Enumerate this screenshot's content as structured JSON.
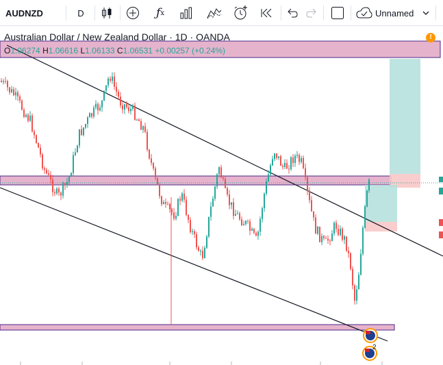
{
  "toolbar": {
    "symbol": "AUDNZD",
    "interval": "D",
    "layout_name": "Unnamed",
    "icons": [
      "bar-style-icon",
      "add-indicator-icon",
      "fx-indicators-icon",
      "financials-icon",
      "compare-icon",
      "alert-icon",
      "replay-icon",
      "undo-icon",
      "redo-icon",
      "fullscreen-icon",
      "cloud-save-icon",
      "chevron-down-icon"
    ]
  },
  "legend": {
    "title": "Australian Dollar / New Zealand Dollar · 1D · OANDA",
    "o_label": "O",
    "o_value": "1.06274",
    "h_label": "H",
    "h_value": "1.06616",
    "l_label": "L",
    "l_value": "1.06133",
    "c_label": "C",
    "c_value": "1.06531",
    "change": "+0.00257 (+0.24%)"
  },
  "alert_badge": "!",
  "event_badge_count": "2",
  "colors": {
    "up": "#26a69a",
    "down": "#ef5350",
    "zone_fill": "#e6b3cc",
    "zone_border": "#4a2a8a",
    "trendline": "#131722",
    "target_fill": "#b2dfdb",
    "stop_fill": "#f8c8c8"
  },
  "chart_data": {
    "type": "candlestick",
    "series_description": "AUDNZD daily candles",
    "last_close": 1.06531
  }
}
